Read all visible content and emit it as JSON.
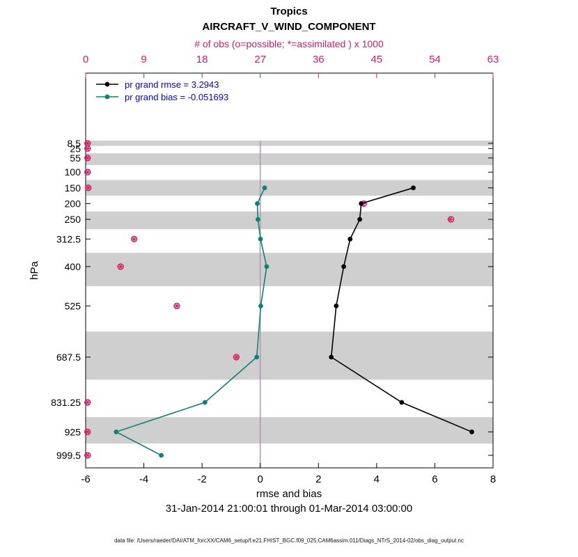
{
  "colors": {
    "obs_axis": "#d81b60",
    "rmse": "#000000",
    "bias": "#0e8272",
    "legend_text": "#0000dd",
    "shaded_band": "#cfcfcf",
    "zero_line": "#ad9cad"
  },
  "footer_note": "data file: /Users/raeder/DAI/ATM_forcXX/CAM6_setup/f.e21.FHIST_BGC.f09_025.CAM6assim.011/Diags_NTrS_2014-02/obs_diag_output.nc",
  "chart_data": {
    "type": "line",
    "title": "Tropics",
    "subtitle": "AIRCRAFT_V_WIND_COMPONENT",
    "top_axis_label": "# of obs (o=possible; *=assimilated ) x 1000",
    "xlabel": "rmse and bias",
    "ylabel": "hPa",
    "date_range": "31-Jan-2014 21:00:01 through 01-Mar-2014 03:00:00",
    "xlim": [
      -6,
      8
    ],
    "x_ticks": [
      -6,
      -4,
      -2,
      0,
      2,
      4,
      6,
      8
    ],
    "top_axis_range": [
      0,
      63
    ],
    "top_axis_ticks": [
      0,
      9,
      18,
      27,
      36,
      45,
      54,
      63
    ],
    "y_levels_hpa": [
      8.5,
      25,
      55,
      100,
      150,
      200,
      250,
      312.5,
      400,
      525,
      687.5,
      831.25,
      925,
      999.5
    ],
    "y_axis_reversed": true,
    "shaded_bin_levels": [
      8.5,
      55,
      150,
      250,
      400,
      687.5,
      925
    ],
    "zero_line_x": 0,
    "legend": [
      {
        "label": "pr grand rmse = 3.2943",
        "series": "rmse"
      },
      {
        "label": "pr grand bias = -0.051693",
        "series": "bias"
      }
    ],
    "series": [
      {
        "name": "rmse",
        "color": "#000000",
        "levels_hpa": [
          150,
          200,
          250,
          312.5,
          400,
          525,
          687.5,
          831.25,
          925
        ],
        "values": [
          5.26,
          3.47,
          3.42,
          3.09,
          2.87,
          2.61,
          2.44,
          4.86,
          7.27
        ]
      },
      {
        "name": "bias",
        "color": "#0e8272",
        "levels_hpa": [
          150,
          200,
          250,
          312.5,
          400,
          525,
          687.5,
          831.25,
          925,
          999.5
        ],
        "values": [
          0.15,
          -0.1,
          -0.08,
          0.01,
          0.22,
          0.02,
          -0.12,
          -1.9,
          -4.95,
          -3.4
        ]
      }
    ],
    "obs_counts_x1000": {
      "levels_hpa": [
        8.5,
        25,
        55,
        100,
        150,
        200,
        250,
        312.5,
        400,
        525,
        687.5,
        831.25,
        925,
        999.5
      ],
      "possible": [
        0.3,
        0.3,
        0.3,
        0.3,
        0.4,
        43.0,
        56.5,
        7.5,
        5.4,
        14.1,
        23.3,
        0.3,
        0.3,
        0.3
      ],
      "assimilated": [
        0.3,
        0.3,
        0.3,
        0.3,
        0.4,
        42.9,
        56.4,
        7.5,
        5.4,
        14.1,
        23.3,
        0.3,
        0.3,
        0.3
      ]
    }
  }
}
